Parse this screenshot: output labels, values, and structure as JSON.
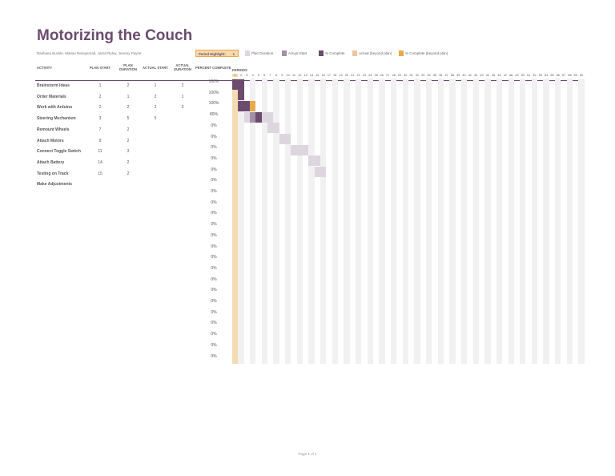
{
  "title": "Motorizing the Couch",
  "authors": "Dashaea Buckle, Manav Rampersad, Jared Ryley, Jeremy Payne",
  "period_highlight": {
    "label": "Period Highlight:",
    "value": "1"
  },
  "legend": [
    {
      "label": "Plan Duration",
      "color": "#ddd6df"
    },
    {
      "label": "Actual Start",
      "color": "#a58fa8"
    },
    {
      "label": "% Complete",
      "color": "#6b4c6e"
    },
    {
      "label": "Actual (beyond plan)",
      "color": "#e8c9a4"
    },
    {
      "label": "% Complete (beyond plan)",
      "color": "#e9a94a"
    }
  ],
  "headers": {
    "activity": "ACTIVITY",
    "plan_start": "PLAN START",
    "plan_duration": "PLAN DURATION",
    "actual_start": "ACTUAL START",
    "actual_duration": "ACTUAL DURATION",
    "percent_complete": "PERCENT COMPLETE",
    "periods": "PERIODS"
  },
  "period_count": 60,
  "colors": {
    "dark": "#6b4c6e",
    "medium": "#a58fa8",
    "light": "#ddd6df",
    "highlight": "#f5dcb0",
    "beyond": "#e9a94a",
    "stripe": "#f1f1f1"
  },
  "rows": [
    {
      "activity": "Brainstorm Ideas",
      "plan_start": "1",
      "plan_duration": "2",
      "actual_start": "1",
      "actual_duration": "2",
      "percent": "100%",
      "cells": {
        "1": "dark",
        "2": "dark"
      }
    },
    {
      "activity": "Order Materials",
      "plan_start": "2",
      "plan_duration": "1",
      "actual_start": "2",
      "actual_duration": "1",
      "percent": "100%",
      "cells": {
        "2": "dark"
      }
    },
    {
      "activity": "Work with Arduino",
      "plan_start": "2",
      "plan_duration": "2",
      "actual_start": "2",
      "actual_duration": "3",
      "percent": "100%",
      "cells": {
        "2": "dark",
        "3": "dark",
        "4": "beyond"
      }
    },
    {
      "activity": "Steering Mechanism",
      "plan_start": "3",
      "plan_duration": "5",
      "actual_start": "5",
      "actual_duration": "",
      "percent": "80%",
      "cells": {
        "3": "light",
        "4": "medium",
        "5": "dark",
        "6": "light",
        "7": "light"
      }
    },
    {
      "activity": "Remount Wheels",
      "plan_start": "7",
      "plan_duration": "2",
      "actual_start": "",
      "actual_duration": "",
      "percent": "0%",
      "cells": {
        "7": "light",
        "8": "light"
      }
    },
    {
      "activity": "Attach Motors",
      "plan_start": "9",
      "plan_duration": "2",
      "actual_start": "",
      "actual_duration": "",
      "percent": "0%",
      "cells": {
        "9": "light",
        "10": "light"
      }
    },
    {
      "activity": "Connect Toggle Switch",
      "plan_start": "11",
      "plan_duration": "3",
      "actual_start": "",
      "actual_duration": "",
      "percent": "0%",
      "cells": {
        "11": "light",
        "12": "light",
        "13": "light"
      }
    },
    {
      "activity": "Attach Battery",
      "plan_start": "14",
      "plan_duration": "2",
      "actual_start": "",
      "actual_duration": "",
      "percent": "0%",
      "cells": {
        "14": "light",
        "15": "light"
      }
    },
    {
      "activity": "Testing on Track",
      "plan_start": "15",
      "plan_duration": "2",
      "actual_start": "",
      "actual_duration": "",
      "percent": "0%",
      "cells": {
        "15": "light",
        "16": "light"
      }
    },
    {
      "activity": "Make Adjustments",
      "plan_start": "",
      "plan_duration": "",
      "actual_start": "",
      "actual_duration": "",
      "percent": "0%",
      "cells": {}
    },
    {
      "activity": "",
      "percent": "0%",
      "cells": {}
    },
    {
      "activity": "",
      "percent": "0%",
      "cells": {}
    },
    {
      "activity": "",
      "percent": "0%",
      "cells": {}
    },
    {
      "activity": "",
      "percent": "0%",
      "cells": {}
    },
    {
      "activity": "",
      "percent": "0%",
      "cells": {}
    },
    {
      "activity": "",
      "percent": "0%",
      "cells": {}
    },
    {
      "activity": "",
      "percent": "0%",
      "cells": {}
    },
    {
      "activity": "",
      "percent": "0%",
      "cells": {}
    },
    {
      "activity": "",
      "percent": "0%",
      "cells": {}
    },
    {
      "activity": "",
      "percent": "0%",
      "cells": {}
    },
    {
      "activity": "",
      "percent": "0%",
      "cells": {}
    },
    {
      "activity": "",
      "percent": "0%",
      "cells": {}
    },
    {
      "activity": "",
      "percent": "0%",
      "cells": {}
    },
    {
      "activity": "",
      "percent": "0%",
      "cells": {}
    },
    {
      "activity": "",
      "percent": "0%",
      "cells": {}
    },
    {
      "activity": "",
      "percent": "0%",
      "cells": {}
    }
  ],
  "footer": "Page 1 of 1"
}
